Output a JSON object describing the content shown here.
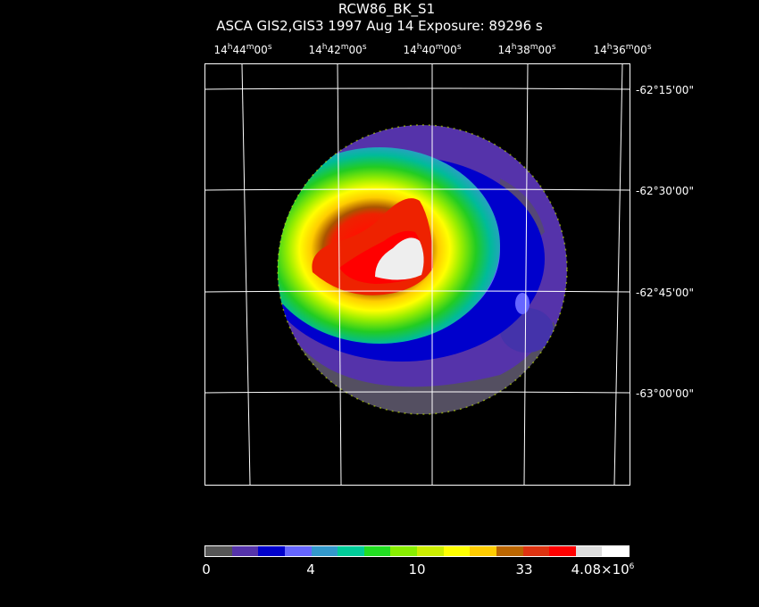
{
  "header": {
    "title": "RCW86_BK_S1",
    "subtitle": "ASCA GIS2,GIS3    1997 Aug 14     Exposure: 89296 s"
  },
  "chart_data": {
    "type": "heatmap",
    "title": "RCW86_BK_S1",
    "ra_ticks": [
      {
        "h": "14",
        "m": "44",
        "s": "00"
      },
      {
        "h": "14",
        "m": "42",
        "s": "00"
      },
      {
        "h": "14",
        "m": "40",
        "s": "00"
      },
      {
        "h": "14",
        "m": "38",
        "s": "00"
      },
      {
        "h": "14",
        "m": "36",
        "s": "00"
      }
    ],
    "dec_ticks": [
      "-62°15'00\"",
      "-62°30'00\"",
      "-62°45'00\"",
      "-63°00'00\""
    ],
    "colorbar": {
      "colors": [
        "#555555",
        "#5533aa",
        "#0000cc",
        "#6666ff",
        "#3399cc",
        "#00cc99",
        "#22dd22",
        "#88ee00",
        "#ccee00",
        "#ffff00",
        "#ffcc00",
        "#bb6600",
        "#dd3311",
        "#ff0000",
        "#dddddd",
        "#ffffff"
      ],
      "tick_labels": [
        "0",
        "4",
        "10",
        "33"
      ],
      "max_label": "4.08×10",
      "max_exponent": "6"
    },
    "field": "circular GIS field with bright emission region in the north-east (upper left); brightest core near RA 14h40m40s, Dec -62°40'",
    "grid": true
  }
}
